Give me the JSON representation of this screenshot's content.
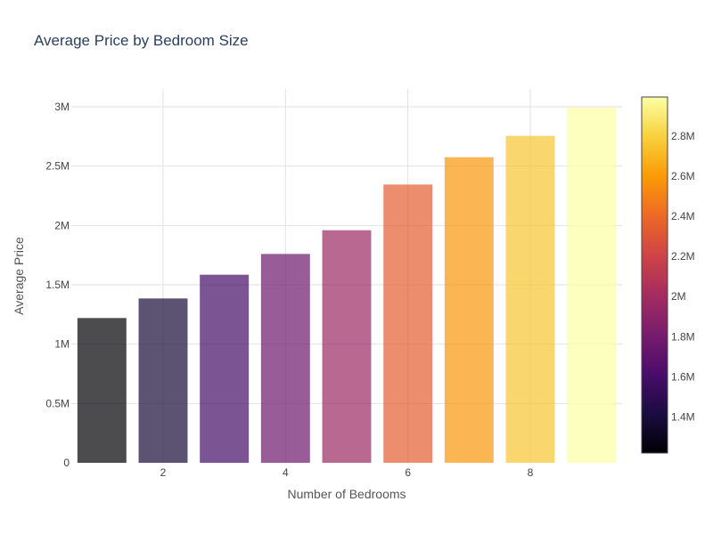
{
  "chart_data": {
    "type": "bar",
    "title": "Average Price by Bedroom Size",
    "xlabel": "Number of Bedrooms",
    "ylabel": "Average Price",
    "categories": [
      1,
      2,
      3,
      4,
      5,
      6,
      7,
      8,
      9
    ],
    "values": [
      1220000,
      1385000,
      1585000,
      1760000,
      1960000,
      2345000,
      2575000,
      2755000,
      2995000
    ],
    "xlim": [
      0.5,
      9.5
    ],
    "ylim": [
      0,
      3150000
    ],
    "xticks": [
      2,
      4,
      6,
      8
    ],
    "xtick_labels": [
      "2",
      "4",
      "6",
      "8"
    ],
    "yticks": [
      0,
      500000,
      1000000,
      1500000,
      2000000,
      2500000,
      3000000
    ],
    "ytick_labels": [
      "0",
      "0.5M",
      "1M",
      "1.5M",
      "2M",
      "2.5M",
      "3M"
    ],
    "grid": true,
    "bar_opacity": 0.7,
    "colorscale": "Inferno",
    "colorscale_stops": [
      "#000004",
      "#1b0c41",
      "#4a0c6b",
      "#781c6d",
      "#a52c60",
      "#cf4446",
      "#ed6925",
      "#fb9b06",
      "#f7d13d",
      "#fcffa4"
    ],
    "colorbar": {
      "min": 1220000,
      "max": 2995000,
      "ticks": [
        1400000,
        1600000,
        1800000,
        2000000,
        2200000,
        2400000,
        2600000,
        2800000
      ],
      "tick_labels": [
        "1.4M",
        "1.6M",
        "1.8M",
        "2M",
        "2.2M",
        "2.4M",
        "2.6M",
        "2.8M"
      ],
      "placement": "right"
    }
  }
}
